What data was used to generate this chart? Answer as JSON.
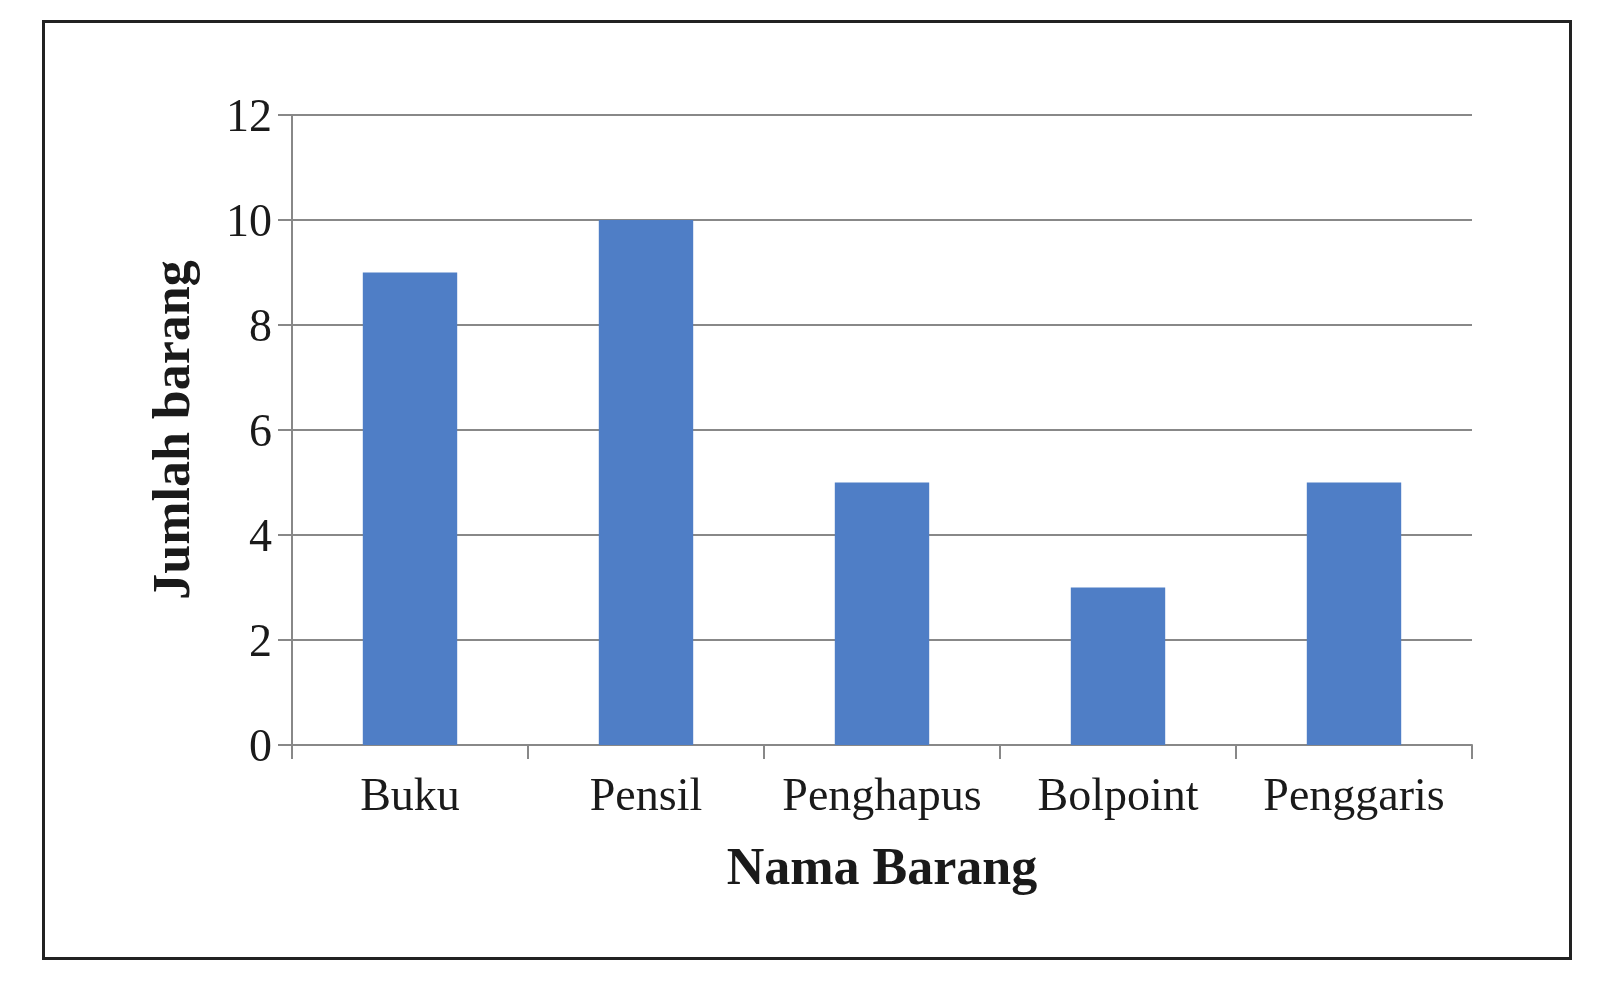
{
  "chart_data": {
    "type": "bar",
    "xlabel": "Nama Barang",
    "ylabel": "Jumlah barang",
    "categories": [
      "Buku",
      "Pensil",
      "Penghapus",
      "Bolpoint",
      "Penggaris"
    ],
    "values": [
      9,
      10,
      5,
      3,
      5
    ],
    "color": "#4f7ec6",
    "ylim": [
      0,
      12
    ],
    "yticks": [
      0,
      2,
      4,
      6,
      8,
      10,
      12
    ],
    "grid": "y"
  }
}
